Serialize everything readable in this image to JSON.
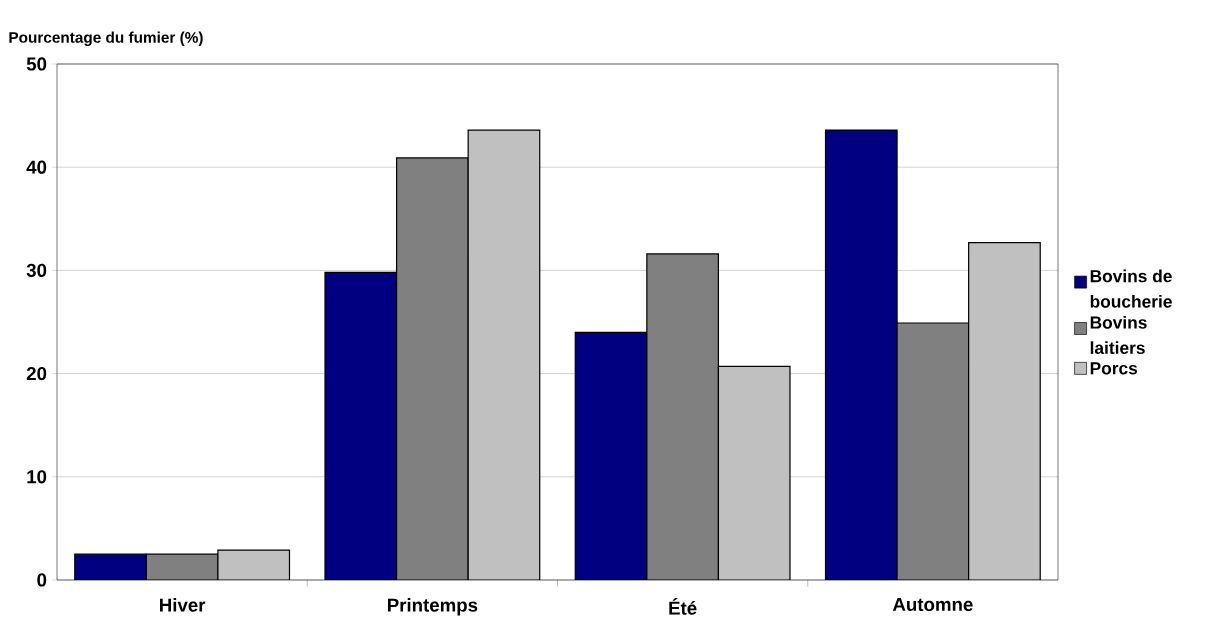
{
  "chart_data": {
    "type": "bar",
    "ylabel": "Pourcentage du fumier (%)",
    "categories": [
      "Hiver",
      "Printemps",
      "Été",
      "Automne"
    ],
    "series": [
      {
        "name": "Bovins de boucherie",
        "color": "#000080",
        "values": [
          2.5,
          29.8,
          24.0,
          43.6
        ]
      },
      {
        "name": "Bovins laitiers",
        "color": "#808080",
        "values": [
          2.5,
          40.9,
          31.6,
          24.9
        ]
      },
      {
        "name": "Porcs",
        "color": "#c0c0c0",
        "values": [
          2.9,
          43.6,
          20.7,
          32.7
        ]
      }
    ],
    "ylim": [
      0,
      50
    ],
    "yticks": [
      0,
      10,
      20,
      30,
      40,
      50
    ],
    "grid": "y",
    "legend": "right"
  }
}
